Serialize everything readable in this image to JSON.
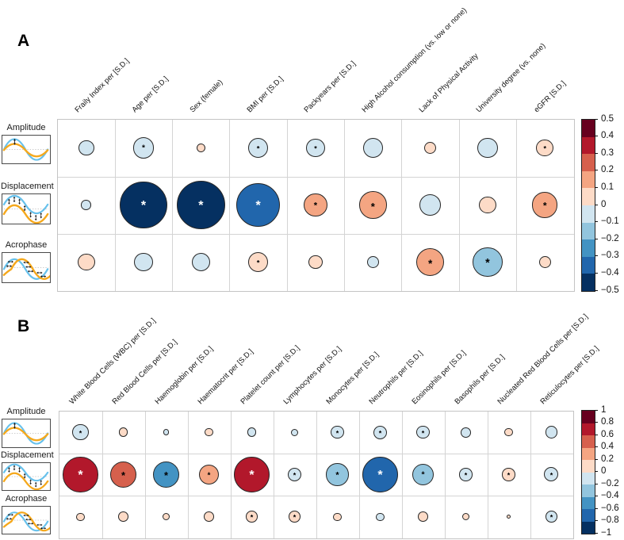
{
  "palette": [
    "#67001f",
    "#b2182b",
    "#d6604d",
    "#f4a582",
    "#fddbc7",
    "#d1e5f0",
    "#92c5de",
    "#4393c3",
    "#2166ac",
    "#053061"
  ],
  "chart_data": [
    {
      "type": "heatmap",
      "panel": "A",
      "rows": [
        {
          "label": "Amplitude",
          "icon": "amplitude-icon"
        },
        {
          "label": "Displacement",
          "icon": "displacement-icon"
        },
        {
          "label": "Acrophase",
          "icon": "acrophase-icon"
        }
      ],
      "columns": [
        "Fraily Index per [S.D.]",
        "Age per [S.D.]",
        "Sex (female)",
        "BMI per [S.D.]",
        "Packyears per [S.D.]",
        "High Alcohol consumption (vs. low or none)",
        "Lack of Physical Activity",
        "University degree (vs. none)",
        "eGFR [S.D.]"
      ],
      "scale_max": 0.5,
      "colorbar_ticks": [
        "0.5",
        "0.4",
        "0.3",
        "0.2",
        "0.1",
        "0",
        "−0.1",
        "−0.2",
        "−0.3",
        "−0.4",
        "−0.5"
      ],
      "legend_position": "right",
      "values": [
        [
          -0.05,
          -0.09,
          0.015,
          -0.08,
          -0.07,
          -0.08,
          0.03,
          -0.08,
          0.06
        ],
        [
          -0.02,
          -0.45,
          -0.47,
          -0.38,
          0.11,
          0.15,
          -0.09,
          0.06,
          0.13
        ],
        [
          0.06,
          -0.07,
          -0.07,
          0.08,
          0.04,
          -0.03,
          0.16,
          -0.18,
          0.03
        ]
      ],
      "significant": [
        [
          false,
          true,
          false,
          true,
          true,
          false,
          false,
          false,
          true
        ],
        [
          false,
          true,
          true,
          true,
          true,
          true,
          false,
          false,
          true
        ],
        [
          false,
          false,
          false,
          true,
          false,
          false,
          true,
          true,
          false
        ]
      ]
    },
    {
      "type": "heatmap",
      "panel": "B",
      "rows": [
        {
          "label": "Amplitude",
          "icon": "amplitude-icon"
        },
        {
          "label": "Displacement",
          "icon": "displacement-icon"
        },
        {
          "label": "Acrophase",
          "icon": "acrophase-icon"
        }
      ],
      "columns": [
        "White Blood Cells (WBC) per [S.D.]",
        "Red Blood Cells per [S.D.]",
        "Haemoglobin per [S.D.]",
        "Haematocrit per [S.D.]",
        "Platelet count per [S.D.]",
        "Lymphocytes per [S.D.]",
        "Monocytes per [S.D.]",
        "Neutrophils per [S.D.]",
        "Eosinophils per [S.D.]",
        "Basophils per [S.D.]",
        "Nucleated Red Blood Cells per [S.D.]",
        "Reticulocytes per [S.D.]"
      ],
      "scale_max": 1,
      "colorbar_ticks": [
        "1",
        "0.8",
        "0.6",
        "0.4",
        "0.2",
        "0",
        "−0.2",
        "−0.4",
        "−0.6",
        "−0.8",
        "−1"
      ],
      "legend_position": "right",
      "values": [
        [
          -0.15,
          0.05,
          -0.02,
          0.04,
          -0.05,
          -0.03,
          -0.1,
          -0.11,
          -0.1,
          -0.06,
          0.04,
          -0.09
        ],
        [
          0.72,
          0.42,
          -0.42,
          0.24,
          0.78,
          -0.11,
          -0.3,
          -0.78,
          -0.28,
          -0.1,
          0.1,
          -0.12
        ],
        [
          0.04,
          0.06,
          0.03,
          0.06,
          0.08,
          0.08,
          0.04,
          -0.04,
          0.06,
          0.03,
          0.01,
          -0.08
        ]
      ],
      "significant": [
        [
          true,
          false,
          false,
          false,
          false,
          false,
          true,
          true,
          true,
          false,
          false,
          false
        ],
        [
          true,
          true,
          true,
          true,
          true,
          true,
          true,
          true,
          true,
          true,
          true,
          true
        ],
        [
          false,
          false,
          false,
          false,
          true,
          true,
          false,
          false,
          false,
          false,
          false,
          true
        ]
      ]
    }
  ]
}
